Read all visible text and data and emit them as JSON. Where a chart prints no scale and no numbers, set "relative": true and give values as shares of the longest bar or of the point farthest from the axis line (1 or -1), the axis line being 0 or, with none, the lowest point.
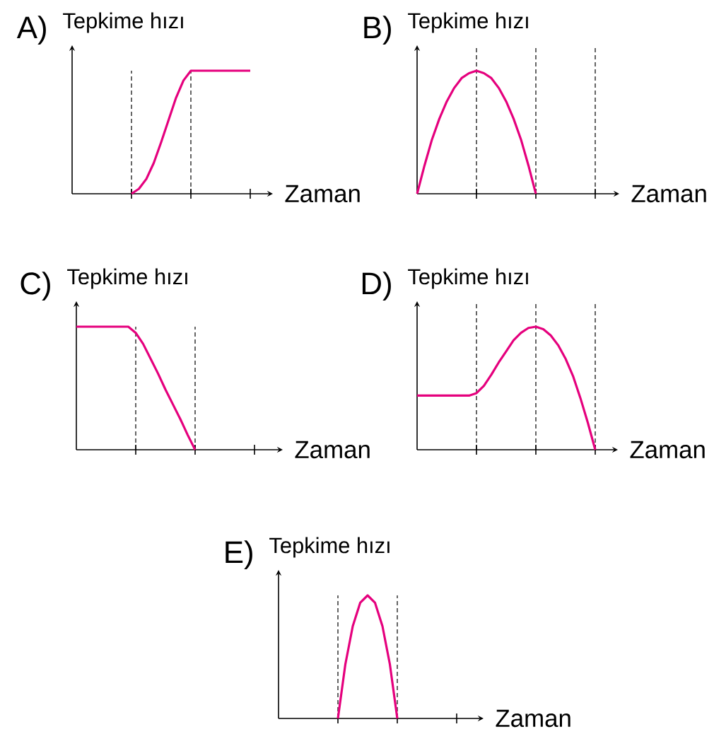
{
  "chart_data": [
    {
      "type": "line",
      "title": "A)",
      "ylabel": "Tepkime hızı",
      "xlabel": "Zaman",
      "relative": true,
      "categories": [
        null,
        null,
        null,
        null,
        null,
        null,
        null,
        null,
        null,
        null,
        null,
        null,
        null,
        null,
        null,
        null,
        null,
        null,
        null,
        null,
        null,
        null,
        null,
        null,
        null
      ],
      "series": [
        {
          "color": "#e5007d",
          "values": [
            null,
            null,
            null,
            null,
            null,
            null,
            null,
            null,
            0,
            0.04,
            0.12,
            0.25,
            0.42,
            0.6,
            0.78,
            0.92,
            1,
            1,
            1,
            1,
            1,
            1,
            1,
            1,
            1
          ]
        }
      ]
    },
    {
      "type": "line",
      "title": "B)",
      "ylabel": "Tepkime hızı",
      "xlabel": "Zaman",
      "relative": true,
      "categories": [
        null,
        null,
        null,
        null,
        null,
        null,
        null,
        null,
        null,
        null,
        null,
        null,
        null,
        null,
        null,
        null,
        null,
        null,
        null,
        null,
        null,
        null,
        null,
        null,
        null
      ],
      "grid": "x",
      "series": [
        {
          "color": "#e5007d",
          "values": [
            0,
            0.23,
            0.44,
            0.61,
            0.75,
            0.86,
            0.94,
            0.98,
            1,
            0.98,
            0.94,
            0.86,
            0.75,
            0.61,
            0.44,
            0.23,
            0,
            null,
            null,
            null,
            null,
            null,
            null,
            null,
            null
          ]
        }
      ]
    },
    {
      "type": "line",
      "title": "C)",
      "ylabel": "Tepkime hızı",
      "xlabel": "Zaman",
      "relative": true,
      "categories": [
        null,
        null,
        null,
        null,
        null,
        null,
        null,
        null,
        null,
        null,
        null,
        null,
        null,
        null,
        null,
        null,
        null,
        null,
        null,
        null,
        null,
        null,
        null,
        null,
        null
      ],
      "series": [
        {
          "color": "#e5007d",
          "values": [
            1,
            1,
            1,
            1,
            1,
            1,
            1,
            1,
            0.95,
            0.86,
            0.74,
            0.62,
            0.49,
            0.37,
            0.25,
            0.12,
            0,
            null,
            null,
            null,
            null,
            null,
            null,
            null,
            null
          ]
        }
      ]
    },
    {
      "type": "line",
      "title": "D)",
      "ylabel": "Tepkime hızı",
      "xlabel": "Zaman",
      "relative": true,
      "categories": [
        null,
        null,
        null,
        null,
        null,
        null,
        null,
        null,
        null,
        null,
        null,
        null,
        null,
        null,
        null,
        null,
        null,
        null,
        null,
        null,
        null,
        null,
        null,
        null,
        null
      ],
      "grid": "x",
      "series": [
        {
          "color": "#e5007d",
          "values": [
            0.44,
            0.44,
            0.44,
            0.44,
            0.44,
            0.44,
            0.44,
            0.44,
            0.46,
            0.52,
            0.61,
            0.71,
            0.8,
            0.89,
            0.95,
            0.99,
            1,
            0.98,
            0.93,
            0.85,
            0.74,
            0.6,
            0.42,
            0.22,
            0
          ]
        }
      ]
    },
    {
      "type": "line",
      "title": "E)",
      "ylabel": "Tepkime hızı",
      "xlabel": "Zaman",
      "relative": true,
      "categories": [
        null,
        null,
        null,
        null,
        null,
        null,
        null,
        null,
        null,
        null,
        null,
        null,
        null,
        null,
        null,
        null,
        null,
        null,
        null,
        null,
        null,
        null,
        null,
        null,
        null
      ],
      "series": [
        {
          "color": "#e5007d",
          "values": [
            null,
            null,
            null,
            null,
            null,
            null,
            null,
            null,
            0,
            0.44,
            0.75,
            0.94,
            1,
            0.94,
            0.75,
            0.44,
            0,
            null,
            null,
            null,
            null,
            null,
            null,
            null,
            null
          ]
        }
      ]
    }
  ]
}
